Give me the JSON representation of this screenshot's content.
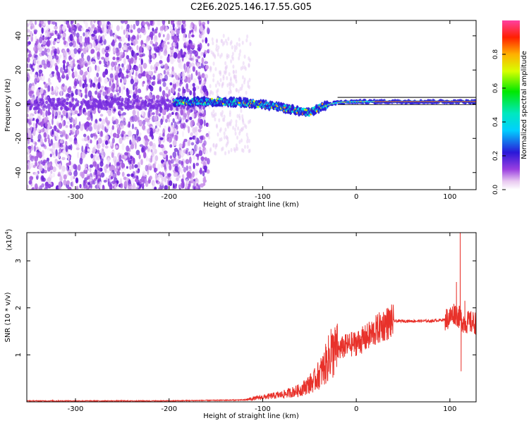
{
  "title": "C2E6.2025.146.17.55.G05",
  "chart_data": [
    {
      "type": "heatmap",
      "xlabel": "Height of straight line (km)",
      "ylabel": "Frequency (Hz)",
      "xlim": [
        -352,
        128
      ],
      "ylim": [
        -50,
        49
      ],
      "x_ticks": [
        "-300",
        "-200",
        "-100",
        "0",
        "100"
      ],
      "y_ticks": [
        "-40",
        "-20",
        "0",
        "20",
        "40"
      ],
      "colorbar": {
        "label": "Normalized spectral amplitude",
        "range": [
          0,
          1
        ],
        "ticks": [
          "0.0",
          "0.2",
          "0.4",
          "0.6",
          "0.8"
        ]
      },
      "description_points": {
        "noise_region_x": [
          -352,
          -158
        ],
        "signal_start_x": -195,
        "signal_track": [
          {
            "x": -190,
            "f": 1.5
          },
          {
            "x": -150,
            "f": 1.5
          },
          {
            "x": -120,
            "f": 1.0
          },
          {
            "x": -90,
            "f": -1.0
          },
          {
            "x": -70,
            "f": -3.0
          },
          {
            "x": -50,
            "f": -5.0
          },
          {
            "x": -35,
            "f": -1.0
          },
          {
            "x": -20,
            "f": 1.0
          },
          {
            "x": 0,
            "f": 1.5
          },
          {
            "x": 50,
            "f": 1.5
          },
          {
            "x": 128,
            "f": 1.5
          }
        ]
      }
    },
    {
      "type": "line",
      "xlabel": "Height of straight line (km)",
      "ylabel": "SNR (10 * v/v)",
      "multiplier_label": "(x10",
      "multiplier_exp": "4",
      "multiplier_close": ")",
      "xlim": [
        -352,
        128
      ],
      "ylim": [
        0,
        3.6
      ],
      "x_ticks": [
        "-300",
        "-200",
        "-100",
        "0",
        "100"
      ],
      "y_ticks": [
        "1",
        "2",
        "3"
      ],
      "series": [
        {
          "color": "#e8312a",
          "envelope": [
            {
              "x": -352,
              "y": 0.02
            },
            {
              "x": -200,
              "y": 0.02
            },
            {
              "x": -120,
              "y": 0.04
            },
            {
              "x": -100,
              "y": 0.1
            },
            {
              "x": -80,
              "y": 0.15
            },
            {
              "x": -60,
              "y": 0.25
            },
            {
              "x": -45,
              "y": 0.45
            },
            {
              "x": -35,
              "y": 0.7
            },
            {
              "x": -28,
              "y": 1.0
            },
            {
              "x": -20,
              "y": 1.1
            },
            {
              "x": -10,
              "y": 1.2
            },
            {
              "x": 0,
              "y": 1.25
            },
            {
              "x": 10,
              "y": 1.35
            },
            {
              "x": 20,
              "y": 1.5
            },
            {
              "x": 30,
              "y": 1.65
            },
            {
              "x": 40,
              "y": 1.72
            },
            {
              "x": 60,
              "y": 1.72
            },
            {
              "x": 80,
              "y": 1.72
            },
            {
              "x": 95,
              "y": 1.75
            },
            {
              "x": 100,
              "y": 1.8
            },
            {
              "x": 105,
              "y": 1.9
            },
            {
              "x": 110,
              "y": 1.8
            },
            {
              "x": 115,
              "y": 1.7
            },
            {
              "x": 128,
              "y": 1.68
            }
          ],
          "spikes": [
            {
              "x": -27,
              "y": 1.55
            },
            {
              "x": -24,
              "y": 1.4
            },
            {
              "x": 107,
              "y": 2.55
            },
            {
              "x": 111,
              "y": 3.6
            },
            {
              "x": 112,
              "y": 0.65
            },
            {
              "x": 116,
              "y": 2.15
            }
          ]
        }
      ]
    }
  ]
}
